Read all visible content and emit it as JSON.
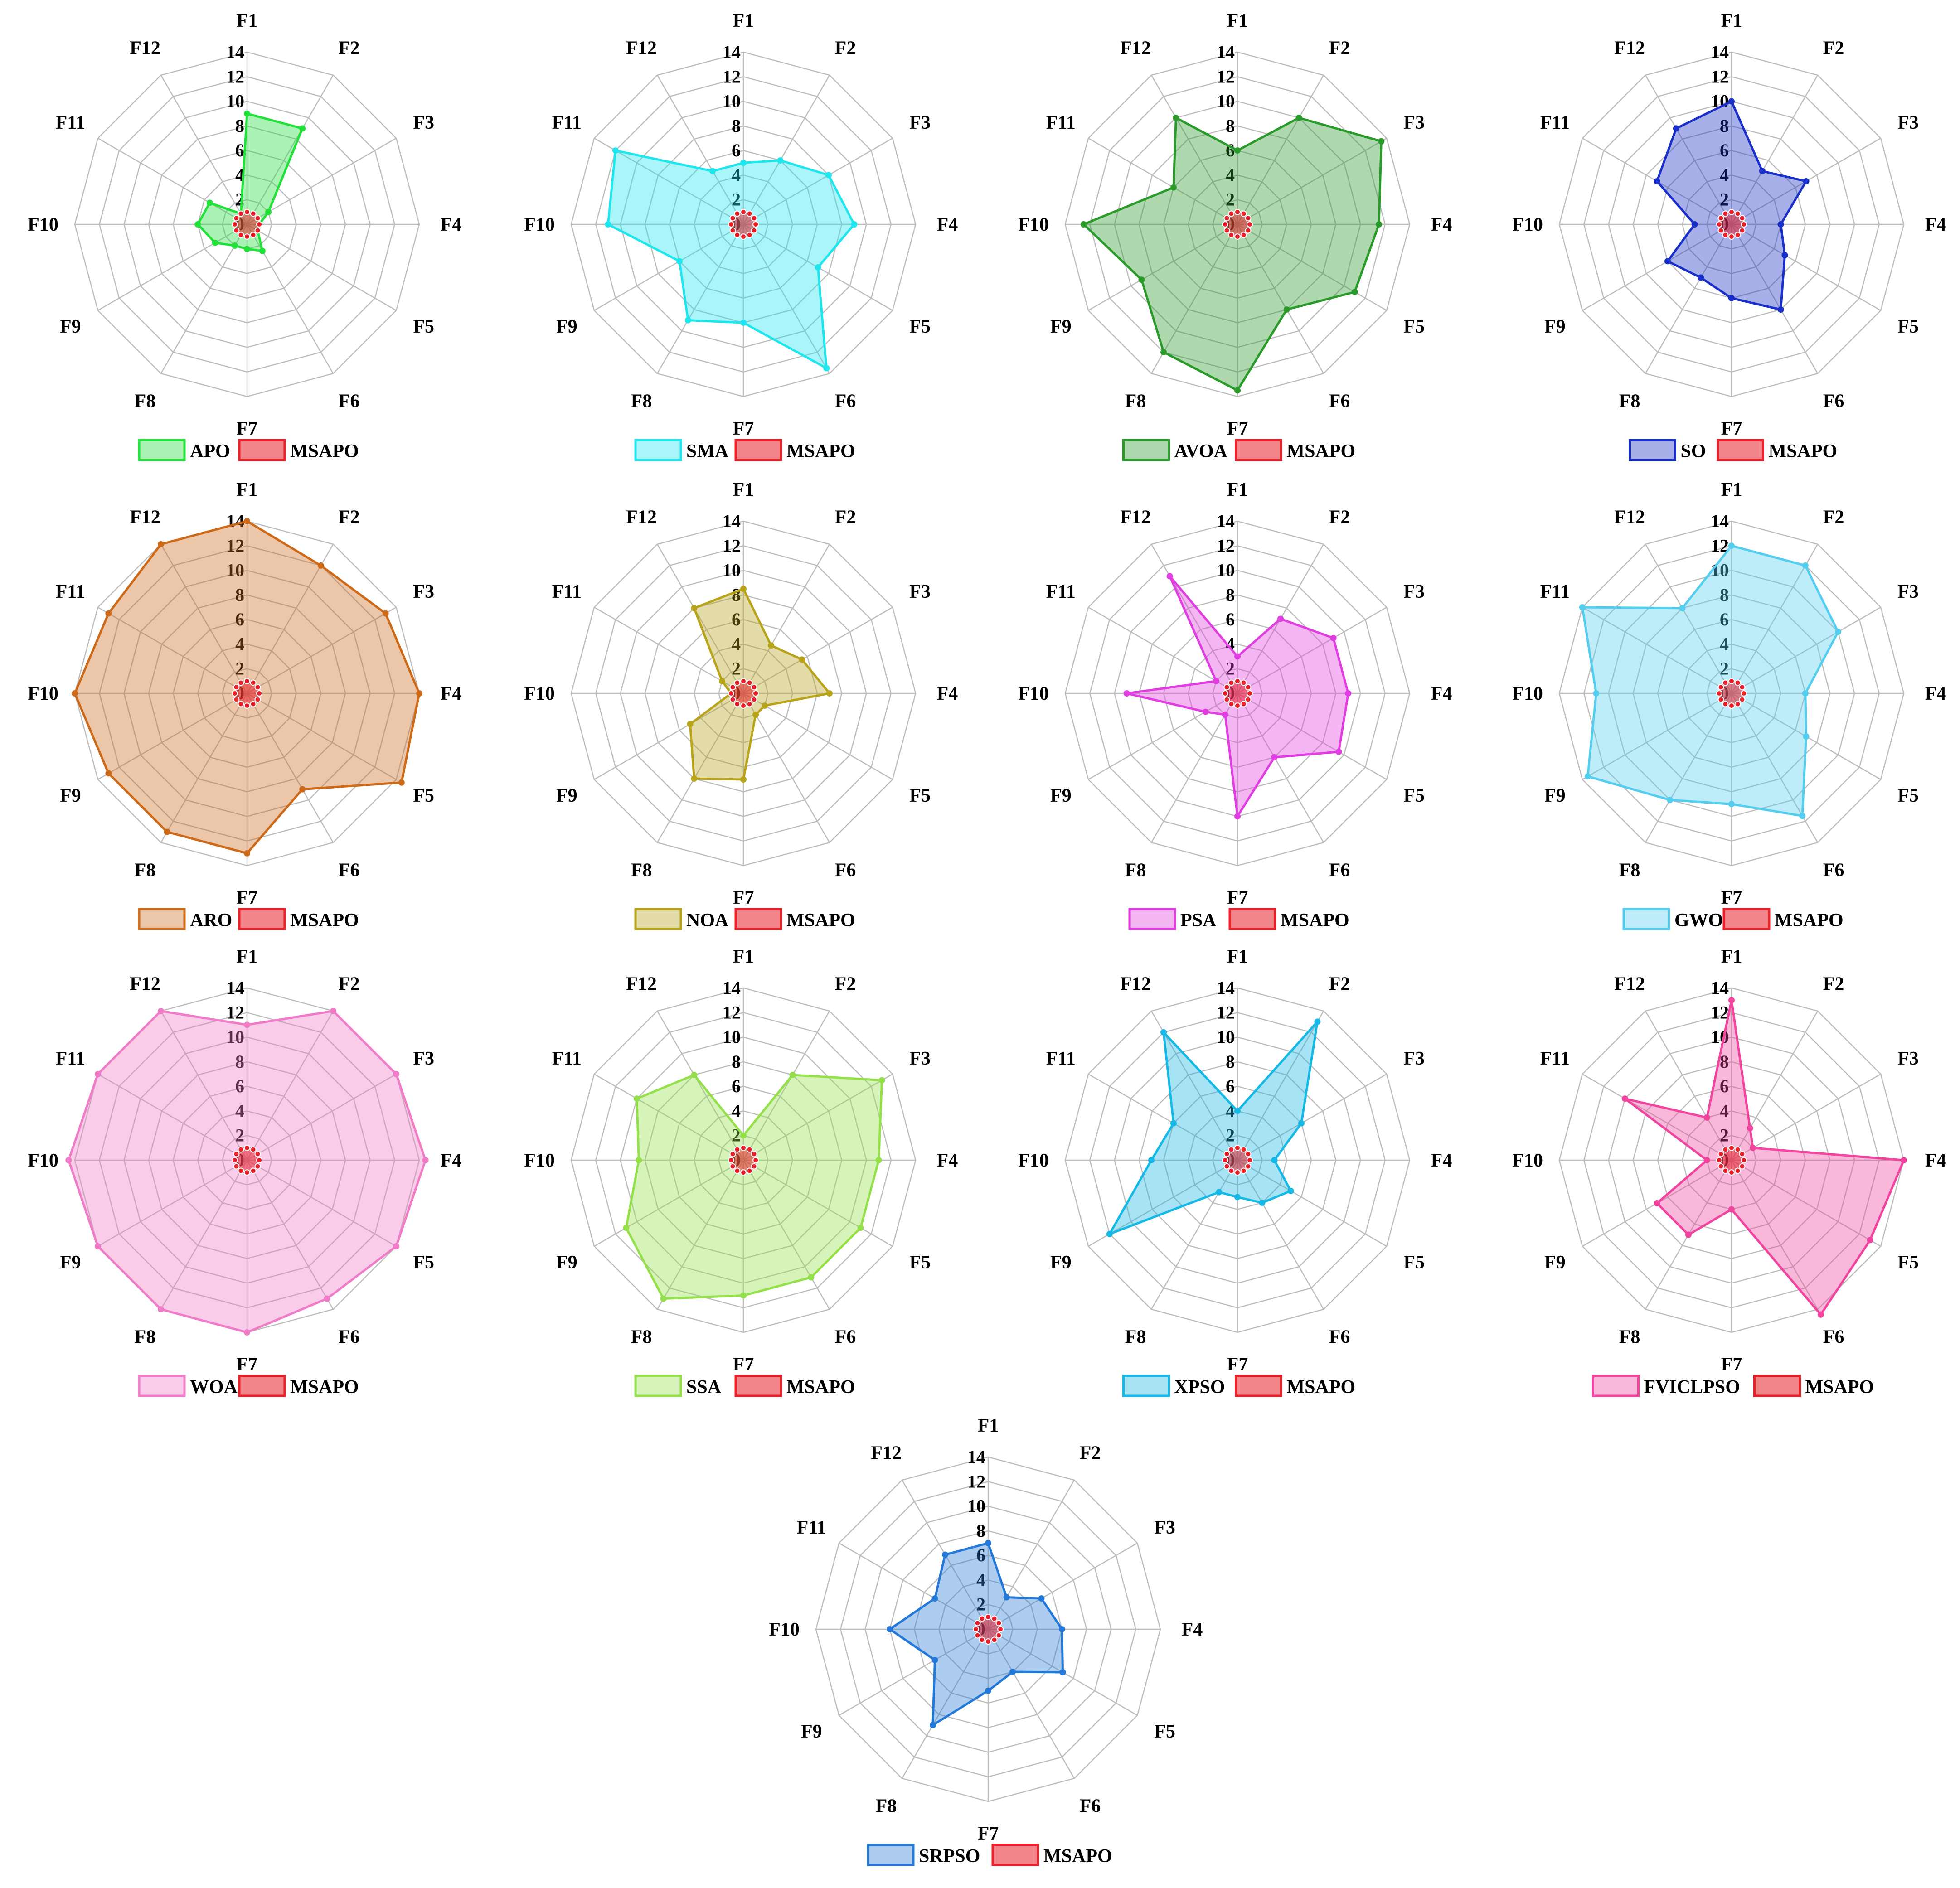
{
  "axes": [
    "F1",
    "F2",
    "F3",
    "F4",
    "F5",
    "F6",
    "F7",
    "F8",
    "F9",
    "F10",
    "F11",
    "F12"
  ],
  "radial_ticks": [
    "0",
    "2",
    "4",
    "6",
    "8",
    "10",
    "12",
    "14"
  ],
  "baseline": {
    "name": "MSAPO",
    "color": "#e8202a",
    "values": [
      1,
      1,
      1,
      1,
      1,
      1,
      1,
      1,
      1,
      1,
      1,
      1
    ]
  },
  "chart_data": [
    {
      "type": "radar",
      "title": "",
      "categories": [
        "F1",
        "F2",
        "F3",
        "F4",
        "F5",
        "F6",
        "F7",
        "F8",
        "F9",
        "F10",
        "F11",
        "F12"
      ],
      "rlim": [
        0,
        14
      ],
      "series": [
        {
          "name": "APO",
          "color": "#22e03a",
          "values": [
            9,
            9,
            2,
            1,
            1,
            2.5,
            2,
            2,
            3,
            4,
            3.5,
            1
          ]
        },
        {
          "name": "MSAPO",
          "color": "#e8202a",
          "values": [
            1,
            1,
            1,
            1,
            1,
            1,
            1,
            1,
            1,
            1,
            1,
            1
          ]
        }
      ]
    },
    {
      "type": "radar",
      "title": "",
      "categories": [
        "F1",
        "F2",
        "F3",
        "F4",
        "F5",
        "F6",
        "F7",
        "F8",
        "F9",
        "F10",
        "F11",
        "F12"
      ],
      "rlim": [
        0,
        14
      ],
      "series": [
        {
          "name": "SMA",
          "color": "#1fe6ee",
          "values": [
            5,
            6,
            8,
            9,
            7,
            13.5,
            8,
            9,
            6,
            11,
            12,
            5
          ]
        },
        {
          "name": "MSAPO",
          "color": "#e8202a",
          "values": [
            1,
            1,
            1,
            1,
            1,
            1,
            1,
            1,
            1,
            1,
            1,
            1
          ]
        }
      ]
    },
    {
      "type": "radar",
      "title": "",
      "categories": [
        "F1",
        "F2",
        "F3",
        "F4",
        "F5",
        "F6",
        "F7",
        "F8",
        "F9",
        "F10",
        "F11",
        "F12"
      ],
      "rlim": [
        0,
        14
      ],
      "series": [
        {
          "name": "AVOA",
          "color": "#2a9a2a",
          "values": [
            6,
            10,
            13.5,
            11.5,
            11,
            8,
            13.5,
            12,
            9,
            12.5,
            6,
            10
          ]
        },
        {
          "name": "MSAPO",
          "color": "#e8202a",
          "values": [
            1,
            1,
            1,
            1,
            1,
            1,
            1,
            1,
            1,
            1,
            1,
            1
          ]
        }
      ]
    },
    {
      "type": "radar",
      "title": "",
      "categories": [
        "F1",
        "F2",
        "F3",
        "F4",
        "F5",
        "F6",
        "F7",
        "F8",
        "F9",
        "F10",
        "F11",
        "F12"
      ],
      "rlim": [
        0,
        14
      ],
      "series": [
        {
          "name": "SO",
          "color": "#1a2fc8",
          "values": [
            10,
            5,
            7,
            4,
            5,
            8,
            6,
            5,
            6,
            3,
            7,
            9
          ]
        },
        {
          "name": "MSAPO",
          "color": "#e8202a",
          "values": [
            1,
            1,
            1,
            1,
            1,
            1,
            1,
            1,
            1,
            1,
            1,
            1
          ]
        }
      ]
    },
    {
      "type": "radar",
      "title": "",
      "categories": [
        "F1",
        "F2",
        "F3",
        "F4",
        "F5",
        "F6",
        "F7",
        "F8",
        "F9",
        "F10",
        "F11",
        "F12"
      ],
      "rlim": [
        0,
        14
      ],
      "series": [
        {
          "name": "ARO",
          "color": "#cc6a1a",
          "values": [
            14,
            12,
            13,
            14,
            14.5,
            9,
            13,
            13,
            13,
            14,
            13,
            14
          ]
        },
        {
          "name": "MSAPO",
          "color": "#e8202a",
          "values": [
            1,
            1,
            1,
            1,
            1,
            1,
            1,
            1,
            1,
            1,
            1,
            1
          ]
        }
      ]
    },
    {
      "type": "radar",
      "title": "",
      "categories": [
        "F1",
        "F2",
        "F3",
        "F4",
        "F5",
        "F6",
        "F7",
        "F8",
        "F9",
        "F10",
        "F11",
        "F12"
      ],
      "rlim": [
        0,
        14
      ],
      "series": [
        {
          "name": "NOA",
          "color": "#b8a41a",
          "values": [
            8.5,
            4.5,
            5.5,
            7,
            2,
            2,
            7,
            8,
            5,
            1,
            2,
            8
          ]
        },
        {
          "name": "MSAPO",
          "color": "#e8202a",
          "values": [
            1,
            1,
            1,
            1,
            1,
            1,
            1,
            1,
            1,
            1,
            1,
            1
          ]
        }
      ]
    },
    {
      "type": "radar",
      "title": "",
      "categories": [
        "F1",
        "F2",
        "F3",
        "F4",
        "F5",
        "F6",
        "F7",
        "F8",
        "F9",
        "F10",
        "F11",
        "F12"
      ],
      "rlim": [
        0,
        14
      ],
      "series": [
        {
          "name": "PSA",
          "color": "#e03ee0",
          "values": [
            3,
            7,
            9,
            9,
            9.5,
            6,
            10,
            2,
            3,
            9,
            2,
            11
          ]
        },
        {
          "name": "MSAPO",
          "color": "#e8202a",
          "values": [
            1,
            1,
            1,
            1,
            1,
            1,
            1,
            1,
            1,
            1,
            1,
            1
          ]
        }
      ]
    },
    {
      "type": "radar",
      "title": "",
      "categories": [
        "F1",
        "F2",
        "F3",
        "F4",
        "F5",
        "F6",
        "F7",
        "F8",
        "F9",
        "F10",
        "F11",
        "F12"
      ],
      "rlim": [
        0,
        14
      ],
      "series": [
        {
          "name": "GWO",
          "color": "#55cdee",
          "values": [
            12,
            12,
            10,
            6,
            7,
            11.5,
            9,
            10,
            13.5,
            11,
            14,
            8
          ]
        },
        {
          "name": "MSAPO",
          "color": "#e8202a",
          "values": [
            1,
            1,
            1,
            1,
            1,
            1,
            1,
            1,
            1,
            1,
            1,
            1
          ]
        }
      ]
    },
    {
      "type": "radar",
      "title": "",
      "categories": [
        "F1",
        "F2",
        "F3",
        "F4",
        "F5",
        "F6",
        "F7",
        "F8",
        "F9",
        "F10",
        "F11",
        "F12"
      ],
      "rlim": [
        0,
        14
      ],
      "series": [
        {
          "name": "WOA",
          "color": "#f07cc8",
          "values": [
            11,
            14,
            14,
            14.5,
            14,
            13,
            14,
            14,
            14,
            14.5,
            14,
            14
          ]
        },
        {
          "name": "MSAPO",
          "color": "#e8202a",
          "values": [
            1,
            1,
            1,
            1,
            1,
            1,
            1,
            1,
            1,
            1,
            1,
            1
          ]
        }
      ]
    },
    {
      "type": "radar",
      "title": "",
      "categories": [
        "F1",
        "F2",
        "F3",
        "F4",
        "F5",
        "F6",
        "F7",
        "F8",
        "F9",
        "F10",
        "F11",
        "F12"
      ],
      "rlim": [
        0,
        14
      ],
      "series": [
        {
          "name": "SSA",
          "color": "#94e04a",
          "values": [
            2,
            8,
            13,
            11,
            11,
            11,
            11,
            13,
            11,
            8.5,
            10,
            8
          ]
        },
        {
          "name": "MSAPO",
          "color": "#e8202a",
          "values": [
            1,
            1,
            1,
            1,
            1,
            1,
            1,
            1,
            1,
            1,
            1,
            1
          ]
        }
      ]
    },
    {
      "type": "radar",
      "title": "",
      "categories": [
        "F1",
        "F2",
        "F3",
        "F4",
        "F5",
        "F6",
        "F7",
        "F8",
        "F9",
        "F10",
        "F11",
        "F12"
      ],
      "rlim": [
        0,
        14
      ],
      "series": [
        {
          "name": "XPSO",
          "color": "#16b8e6",
          "values": [
            4,
            13,
            6,
            3,
            5,
            4,
            3,
            3,
            12,
            7,
            6,
            12
          ]
        },
        {
          "name": "MSAPO",
          "color": "#e8202a",
          "values": [
            1,
            1,
            1,
            1,
            1,
            1,
            1,
            1,
            1,
            1,
            1,
            1
          ]
        }
      ]
    },
    {
      "type": "radar",
      "title": "",
      "categories": [
        "F1",
        "F2",
        "F3",
        "F4",
        "F5",
        "F6",
        "F7",
        "F8",
        "F9",
        "F10",
        "F11",
        "F12"
      ],
      "rlim": [
        0,
        14
      ],
      "series": [
        {
          "name": "FVICLPSO",
          "color": "#f0449e",
          "values": [
            13,
            3,
            2,
            14,
            13,
            14.5,
            4,
            7,
            7,
            2,
            10,
            4
          ]
        },
        {
          "name": "MSAPO",
          "color": "#e8202a",
          "values": [
            1,
            1,
            1,
            1,
            1,
            1,
            1,
            1,
            1,
            1,
            1,
            1
          ]
        }
      ]
    },
    {
      "type": "radar",
      "title": "",
      "categories": [
        "F1",
        "F2",
        "F3",
        "F4",
        "F5",
        "F6",
        "F7",
        "F8",
        "F9",
        "F10",
        "F11",
        "F12"
      ],
      "rlim": [
        0,
        14
      ],
      "series": [
        {
          "name": "SRPSO",
          "color": "#2478d8",
          "values": [
            7,
            3,
            5,
            6,
            7,
            4,
            5,
            9,
            5,
            8,
            5,
            7
          ]
        },
        {
          "name": "MSAPO",
          "color": "#e8202a",
          "values": [
            1,
            1,
            1,
            1,
            1,
            1,
            1,
            1,
            1,
            1,
            1,
            1
          ]
        }
      ]
    }
  ]
}
